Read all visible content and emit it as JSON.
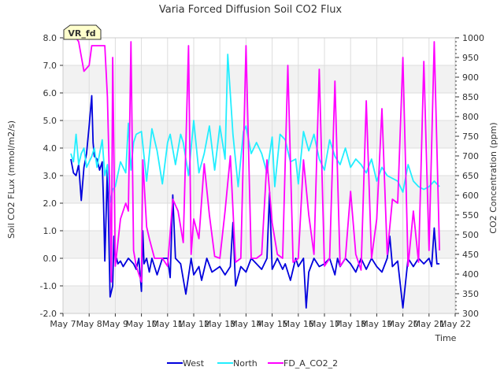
{
  "chart_data": {
    "type": "line",
    "title": "Varia Forced Diffusion Soil CO2 Flux",
    "xlabel": "Time",
    "ylabel": "Soil CO2 FLux (mmol/m2/s)",
    "y2label": "CO2 Concentration (ppm)",
    "site_badge": "VR_fd",
    "x_ticks": [
      "May 7",
      "May 8",
      "May 9",
      "May 10",
      "May 11",
      "May 12",
      "May 13",
      "May 14",
      "May 15",
      "May 16",
      "May 17",
      "May 18",
      "May 19",
      "May 20",
      "May 21",
      "May 22"
    ],
    "y_ticks": [
      "-2.0",
      "-1.0",
      "0.0",
      "1.0",
      "2.0",
      "3.0",
      "4.0",
      "5.0",
      "6.0",
      "7.0",
      "8.0"
    ],
    "y2_ticks": [
      "300",
      "350",
      "400",
      "450",
      "500",
      "550",
      "600",
      "650",
      "700",
      "750",
      "800",
      "850",
      "900",
      "950",
      "1000"
    ],
    "xlim": [
      7,
      22
    ],
    "ylim": [
      -2,
      8
    ],
    "y2lim": [
      300,
      1000
    ],
    "grid": true,
    "banded_background": true,
    "legend_position": "bottom-center",
    "series": [
      {
        "name": "West",
        "color": "#0000dd",
        "axis": "left",
        "x": [
          7.3,
          7.4,
          7.5,
          7.6,
          7.7,
          7.8,
          7.9,
          8.0,
          8.1,
          8.15,
          8.2,
          8.3,
          8.4,
          8.5,
          8.55,
          8.6,
          8.7,
          8.8,
          8.9,
          8.95,
          9.0,
          9.05,
          9.1,
          9.2,
          9.3,
          9.5,
          9.7,
          9.8,
          9.9,
          10.0,
          10.05,
          10.1,
          10.2,
          10.3,
          10.4,
          10.6,
          10.8,
          11.0,
          11.1,
          11.2,
          11.3,
          11.5,
          11.7,
          11.9,
          12.0,
          12.2,
          12.3,
          12.5,
          12.7,
          13.0,
          13.2,
          13.4,
          13.5,
          13.6,
          13.8,
          14.0,
          14.2,
          14.4,
          14.6,
          14.8,
          14.9,
          15.0,
          15.2,
          15.4,
          15.5,
          15.7,
          15.9,
          16.0,
          16.2,
          16.3,
          16.4,
          16.6,
          16.8,
          17.0,
          17.2,
          17.4,
          17.5,
          17.6,
          17.8,
          18.0,
          18.2,
          18.4,
          18.6,
          18.8,
          19.0,
          19.2,
          19.4,
          19.5,
          19.6,
          19.8,
          20.0,
          20.2,
          20.4,
          20.6,
          20.8,
          21.0,
          21.1,
          21.2,
          21.3,
          21.4
        ],
        "values": [
          3.6,
          3.1,
          3.0,
          3.4,
          2.1,
          3.3,
          3.8,
          4.8,
          5.9,
          4.2,
          3.7,
          3.6,
          3.2,
          3.5,
          2.0,
          -0.1,
          3.3,
          -1.4,
          -1.0,
          0.8,
          -0.1,
          0.0,
          -0.2,
          -0.1,
          -0.3,
          0.0,
          -0.2,
          -0.4,
          0.0,
          -1.2,
          1.0,
          -0.2,
          0.0,
          -0.5,
          0.0,
          -0.6,
          0.0,
          0.0,
          -0.7,
          2.3,
          0.0,
          -0.2,
          -1.3,
          0.0,
          -0.6,
          -0.3,
          -0.8,
          0.0,
          -0.5,
          -0.3,
          -0.6,
          -0.3,
          1.3,
          -1.0,
          -0.3,
          -0.5,
          0.0,
          -0.2,
          -0.4,
          0.0,
          2.4,
          -0.4,
          0.0,
          -0.4,
          -0.2,
          -0.8,
          0.0,
          -0.3,
          0.0,
          -1.8,
          -0.5,
          0.0,
          -0.3,
          -0.2,
          0.0,
          -0.6,
          0.0,
          -0.3,
          0.0,
          -0.2,
          -0.5,
          0.0,
          -0.4,
          0.0,
          -0.3,
          -0.5,
          0.0,
          0.8,
          -0.3,
          -0.1,
          -1.8,
          0.0,
          -0.3,
          0.0,
          -0.2,
          0.0,
          -0.3,
          1.1,
          -0.2,
          -0.2
        ]
      },
      {
        "name": "North",
        "color": "#22eeff",
        "axis": "left",
        "x": [
          7.3,
          7.4,
          7.5,
          7.6,
          7.7,
          7.8,
          7.9,
          8.0,
          8.1,
          8.2,
          8.3,
          8.5,
          8.6,
          8.7,
          8.8,
          8.9,
          9.0,
          9.2,
          9.4,
          9.5,
          9.6,
          9.7,
          9.8,
          10.0,
          10.2,
          10.4,
          10.6,
          10.8,
          11.0,
          11.1,
          11.3,
          11.5,
          11.6,
          11.8,
          12.0,
          12.2,
          12.4,
          12.6,
          12.8,
          13.0,
          13.2,
          13.3,
          13.5,
          13.7,
          13.9,
          14.0,
          14.2,
          14.4,
          14.6,
          14.8,
          15.0,
          15.1,
          15.3,
          15.5,
          15.7,
          15.9,
          16.0,
          16.2,
          16.4,
          16.6,
          16.8,
          17.0,
          17.2,
          17.4,
          17.6,
          17.8,
          18.0,
          18.2,
          18.4,
          18.6,
          18.8,
          19.0,
          19.2,
          19.4,
          19.6,
          19.8,
          20.0,
          20.2,
          20.4,
          20.6,
          20.8,
          21.0,
          21.2,
          21.4
        ],
        "values": [
          3.8,
          3.5,
          4.5,
          3.4,
          3.8,
          4.0,
          3.3,
          3.5,
          3.7,
          4.0,
          3.3,
          4.3,
          3.0,
          3.4,
          2.0,
          2.5,
          2.6,
          3.5,
          3.1,
          4.9,
          3.2,
          4.2,
          4.5,
          4.6,
          2.8,
          4.7,
          3.9,
          2.7,
          4.2,
          4.5,
          3.4,
          4.5,
          4.2,
          3.0,
          5.0,
          3.1,
          3.8,
          4.8,
          3.2,
          4.8,
          3.6,
          7.4,
          4.5,
          2.6,
          4.6,
          4.8,
          3.8,
          4.2,
          3.8,
          3.1,
          4.4,
          2.6,
          4.5,
          4.3,
          3.5,
          3.6,
          2.7,
          4.6,
          3.9,
          4.5,
          3.6,
          3.2,
          4.3,
          3.7,
          3.4,
          4.0,
          3.3,
          3.6,
          3.4,
          3.1,
          3.6,
          2.8,
          3.3,
          3.0,
          2.9,
          2.8,
          2.4,
          3.4,
          2.8,
          2.6,
          2.5,
          2.6,
          2.8,
          2.6
        ]
      },
      {
        "name": "FD_A_CO2_2",
        "color": "#ff00ff",
        "axis": "right",
        "x": [
          7.5,
          7.6,
          7.8,
          8.0,
          8.1,
          8.3,
          8.6,
          8.7,
          8.8,
          8.85,
          8.9,
          9.0,
          9.2,
          9.4,
          9.5,
          9.6,
          9.7,
          9.8,
          10.0,
          10.05,
          10.2,
          10.3,
          10.5,
          10.8,
          11.0,
          11.2,
          11.4,
          11.6,
          11.8,
          11.9,
          12.0,
          12.2,
          12.4,
          12.6,
          12.8,
          13.0,
          13.2,
          13.4,
          13.6,
          13.8,
          14.0,
          14.2,
          14.4,
          14.6,
          14.8,
          15.0,
          15.2,
          15.4,
          15.6,
          15.8,
          16.0,
          16.2,
          16.4,
          16.6,
          16.8,
          17.0,
          17.2,
          17.4,
          17.6,
          17.8,
          18.0,
          18.2,
          18.4,
          18.6,
          18.8,
          19.0,
          19.2,
          19.4,
          19.6,
          19.8,
          20.0,
          20.2,
          20.4,
          20.6,
          20.8,
          21.0,
          21.2,
          21.4
        ],
        "values": [
          1000,
          990,
          915,
          930,
          980,
          980,
          980,
          850,
          570,
          380,
          950,
          420,
          540,
          580,
          560,
          990,
          460,
          420,
          380,
          690,
          520,
          490,
          440,
          440,
          420,
          590,
          560,
          480,
          980,
          450,
          540,
          490,
          680,
          550,
          445,
          440,
          560,
          700,
          430,
          440,
          980,
          440,
          440,
          450,
          690,
          530,
          450,
          440,
          930,
          430,
          440,
          690,
          550,
          450,
          920,
          420,
          440,
          890,
          420,
          440,
          610,
          450,
          410,
          840,
          440,
          540,
          820,
          450,
          590,
          580,
          950,
          420,
          560,
          430,
          940,
          460,
          990,
          460
        ]
      }
    ]
  }
}
